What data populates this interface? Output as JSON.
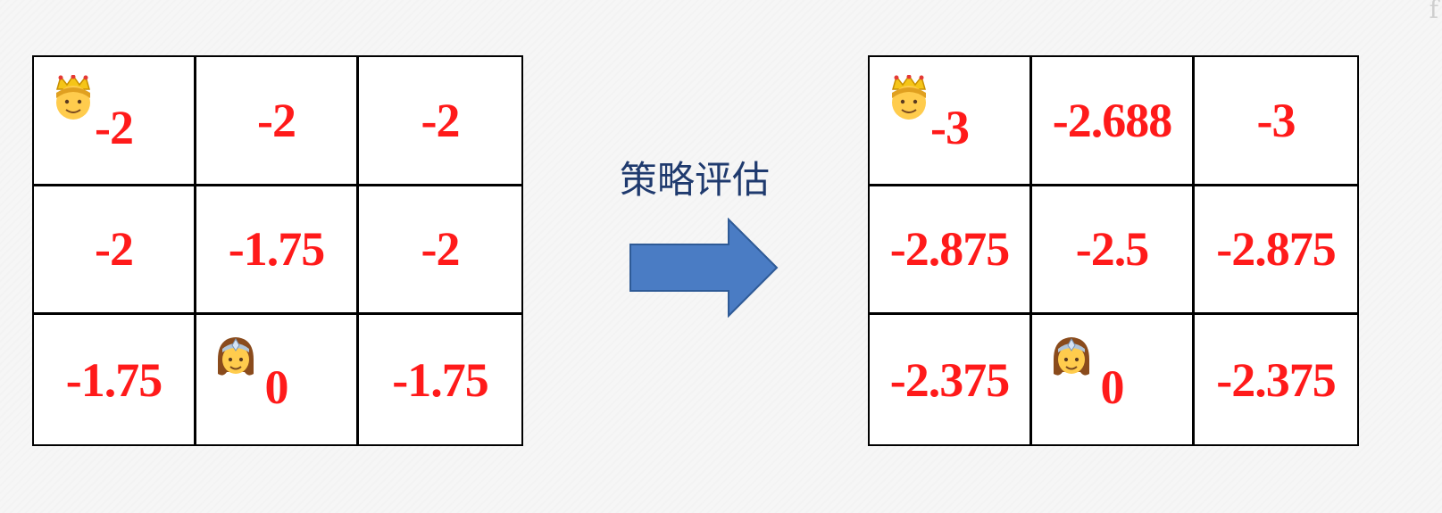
{
  "label": "策略评估",
  "corner_mark": "f",
  "left_grid": [
    {
      "value": "-2",
      "avatar": "king"
    },
    {
      "value": "-2"
    },
    {
      "value": "-2"
    },
    {
      "value": "-2"
    },
    {
      "value": "-1.75"
    },
    {
      "value": "-2"
    },
    {
      "value": "-1.75"
    },
    {
      "value": "0",
      "avatar": "princess"
    },
    {
      "value": "-1.75"
    }
  ],
  "right_grid": [
    {
      "value": "-3",
      "avatar": "king"
    },
    {
      "value": "-2.688"
    },
    {
      "value": "-3"
    },
    {
      "value": "-2.875"
    },
    {
      "value": "-2.5"
    },
    {
      "value": "-2.875"
    },
    {
      "value": "-2.375"
    },
    {
      "value": "0",
      "avatar": "princess"
    },
    {
      "value": "-2.375"
    }
  ],
  "icons": {
    "king": "king-icon",
    "princess": "princess-icon",
    "arrow": "right-arrow-icon"
  },
  "colors": {
    "value_text": "#ff1a1a",
    "label_text": "#1f3a6e",
    "arrow_fill": "#4a7cc4",
    "arrow_stroke": "#2e5a96",
    "grid_line": "#000000"
  }
}
